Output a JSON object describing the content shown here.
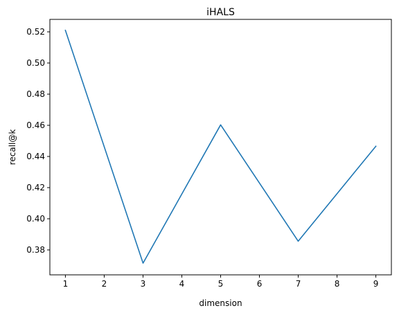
{
  "chart_data": {
    "type": "line",
    "title": "iHALS",
    "xlabel": "dimension",
    "ylabel": "recall@k",
    "x": [
      1,
      3,
      5,
      7,
      9
    ],
    "series": [
      {
        "values": [
          0.521,
          0.3715,
          0.4603,
          0.3856,
          0.4466
        ],
        "color": "#1f77b4"
      }
    ],
    "xlim": [
      0.6,
      9.4
    ],
    "ylim": [
      0.364,
      0.528
    ],
    "xticks": [
      1,
      2,
      3,
      4,
      5,
      6,
      7,
      8,
      9
    ],
    "xtick_labels": [
      "1",
      "2",
      "3",
      "4",
      "5",
      "6",
      "7",
      "8",
      "9"
    ],
    "yticks": [
      0.38,
      0.4,
      0.42,
      0.44,
      0.46,
      0.48,
      0.5,
      0.52
    ],
    "ytick_labels": [
      "0.38",
      "0.40",
      "0.42",
      "0.44",
      "0.46",
      "0.48",
      "0.50",
      "0.52"
    ],
    "grid": false,
    "legend": false
  }
}
